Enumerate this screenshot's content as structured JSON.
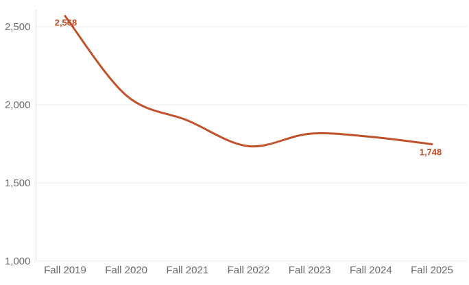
{
  "chart_data": {
    "type": "line",
    "title": "",
    "xlabel": "",
    "ylabel": "",
    "legend": "none",
    "grid": "horizontal",
    "categories": [
      "Fall 2019",
      "Fall 2020",
      "Fall 2021",
      "Fall 2022",
      "Fall 2023",
      "Fall 2024",
      "Fall 2025"
    ],
    "values": [
      2568,
      2060,
      1900,
      1735,
      1815,
      1795,
      1748
    ],
    "point_labels": {
      "first": "2,568",
      "last": "1,748"
    },
    "y_ticks": [
      {
        "value": 2500,
        "label": "2,500"
      },
      {
        "value": 2000,
        "label": "2,000"
      },
      {
        "value": 1500,
        "label": "1,500"
      },
      {
        "value": 1000,
        "label": "1,000"
      }
    ],
    "ylim": [
      1000,
      2500
    ],
    "colors": {
      "line": "#c2522c",
      "point_label": "#bf4c24",
      "axis_text": "#6a6a6a",
      "gridline": "#ededed",
      "axis_line": "#d9d9d9",
      "background": "#ffffff"
    }
  }
}
